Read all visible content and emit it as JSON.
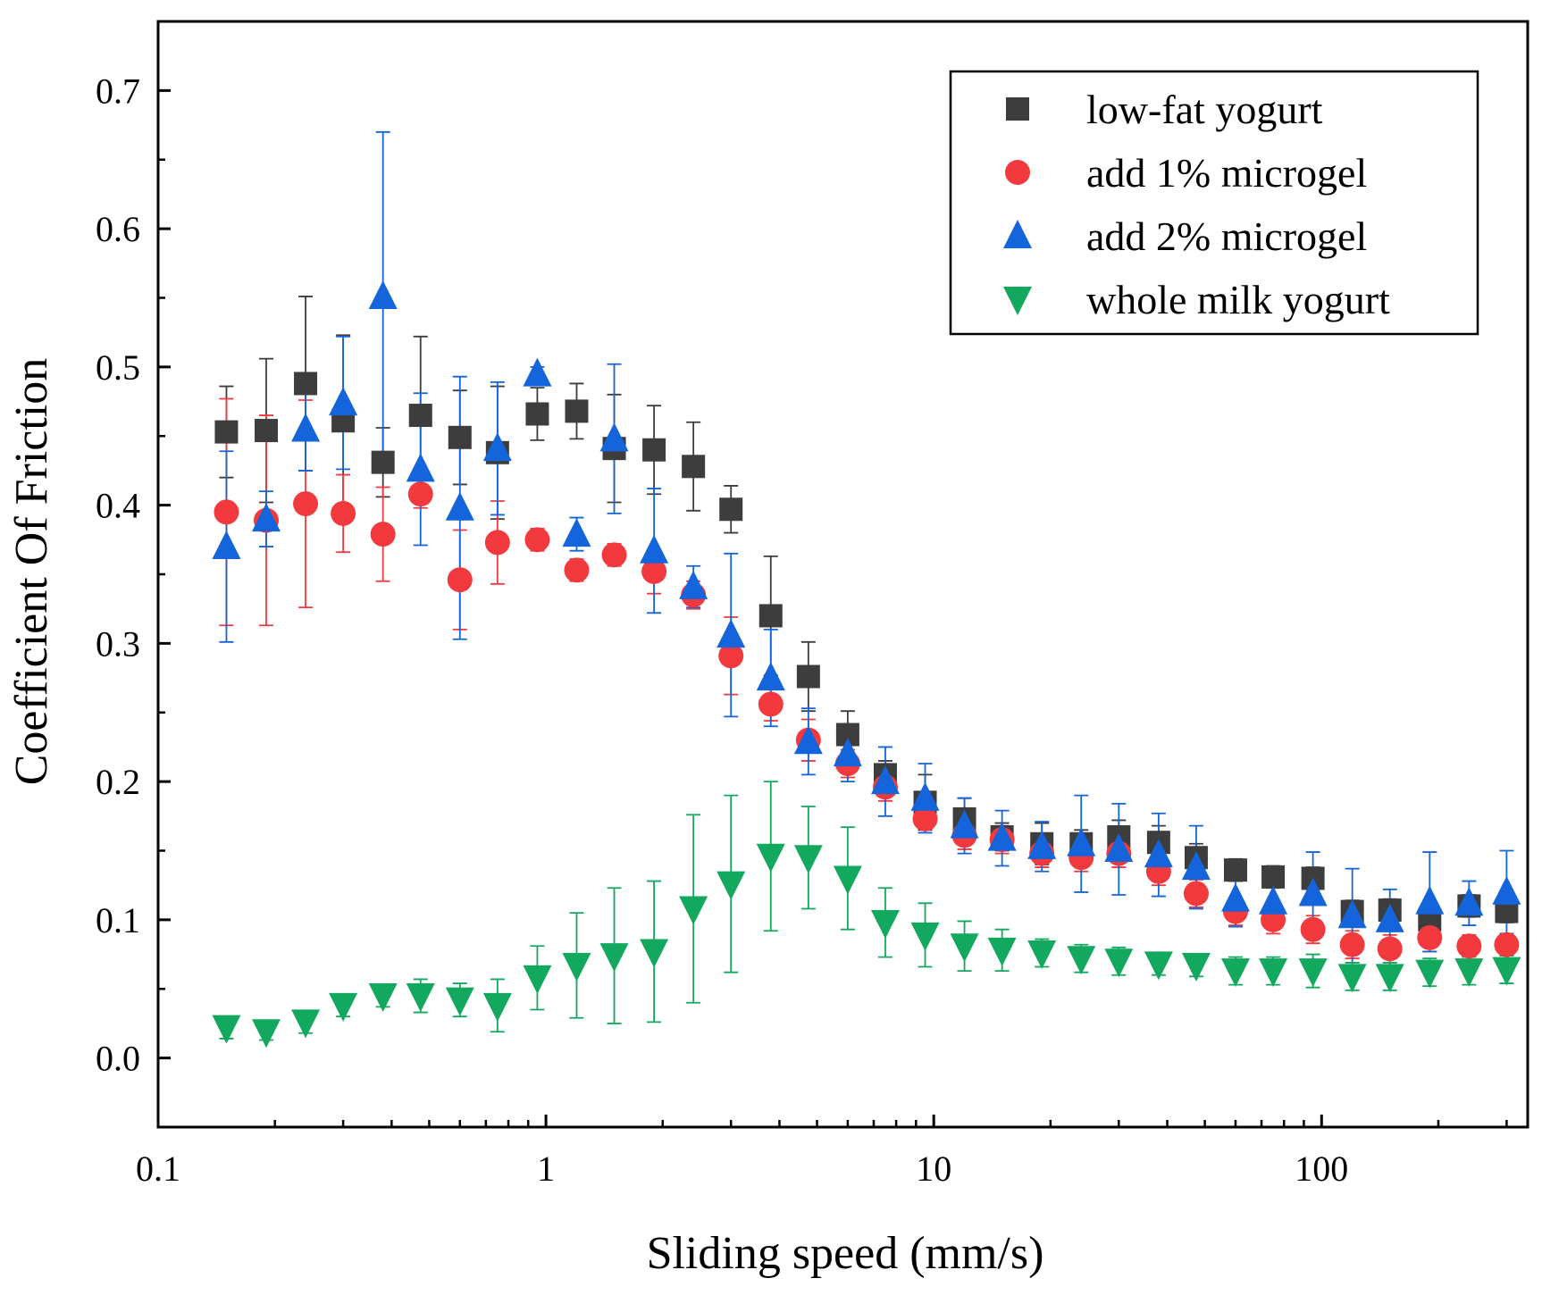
{
  "chart_data": {
    "type": "scatter",
    "xscale": "log",
    "xlabel": "Sliding speed (mm/s)",
    "ylabel": "Coefficient Of Friction",
    "xlim": [
      0.1,
      340
    ],
    "ylim": [
      -0.05,
      0.75
    ],
    "x_ticks": [
      {
        "value": 0.1,
        "label": "0.1"
      },
      {
        "value": 1,
        "label": "1"
      },
      {
        "value": 10,
        "label": "10"
      },
      {
        "value": 100,
        "label": "100"
      }
    ],
    "y_ticks": [
      {
        "value": 0.0,
        "label": "0.0"
      },
      {
        "value": 0.1,
        "label": "0.1"
      },
      {
        "value": 0.2,
        "label": "0.2"
      },
      {
        "value": 0.3,
        "label": "0.3"
      },
      {
        "value": 0.4,
        "label": "0.4"
      },
      {
        "value": 0.5,
        "label": "0.5"
      },
      {
        "value": 0.6,
        "label": "0.6"
      },
      {
        "value": 0.7,
        "label": "0.7"
      }
    ],
    "legend_position": "top-right",
    "x": [
      0.15,
      0.19,
      0.24,
      0.3,
      0.38,
      0.475,
      0.6,
      0.75,
      0.95,
      1.2,
      1.5,
      1.9,
      2.4,
      3.0,
      3.8,
      4.75,
      6.0,
      7.5,
      9.5,
      12,
      15,
      19,
      24,
      30,
      38,
      47.5,
      60,
      75,
      95,
      120,
      150,
      190,
      240,
      300
    ],
    "series": [
      {
        "name": "low-fat yogurt",
        "marker": "square",
        "color": "#3d3d3d",
        "error_color": "#3d3d3d",
        "values": [
          0.453,
          0.454,
          0.488,
          0.461,
          0.431,
          0.465,
          0.449,
          0.438,
          0.466,
          0.468,
          0.441,
          0.44,
          0.428,
          0.397,
          0.32,
          0.276,
          0.234,
          0.205,
          0.185,
          0.173,
          0.16,
          0.155,
          0.155,
          0.16,
          0.156,
          0.145,
          0.136,
          0.131,
          0.13,
          0.106,
          0.107,
          0.1,
          0.11,
          0.106
        ],
        "errors": [
          0.033,
          0.052,
          0.063,
          0.062,
          0.025,
          0.057,
          0.034,
          0.048,
          0.019,
          0.02,
          0.039,
          0.032,
          0.032,
          0.017,
          0.043,
          0.025,
          0.017,
          0.01,
          0.02,
          0.015,
          0.01,
          0.015,
          0.01,
          0.012,
          0.012,
          0.01,
          0.008,
          0.008,
          0.008,
          0.008,
          0.008,
          0.008,
          0.008,
          0.008
        ]
      },
      {
        "name": "add 1% microgel",
        "marker": "circle",
        "color": "#f2393d",
        "error_color": "#f2393d",
        "values": [
          0.395,
          0.389,
          0.401,
          0.394,
          0.379,
          0.408,
          0.346,
          0.373,
          0.375,
          0.353,
          0.364,
          0.352,
          0.335,
          0.291,
          0.256,
          0.23,
          0.213,
          0.196,
          0.173,
          0.161,
          0.158,
          0.148,
          0.145,
          0.148,
          0.135,
          0.119,
          0.106,
          0.1,
          0.093,
          0.082,
          0.079,
          0.087,
          0.081,
          0.082
        ],
        "errors": [
          0.082,
          0.076,
          0.075,
          0.028,
          0.034,
          0.01,
          0.036,
          0.03,
          0.008,
          0.008,
          0.008,
          0.016,
          0.01,
          0.028,
          0.012,
          0.015,
          0.01,
          0.01,
          0.01,
          0.01,
          0.01,
          0.01,
          0.01,
          0.01,
          0.01,
          0.01,
          0.01,
          0.01,
          0.01,
          0.01,
          0.01,
          0.01,
          0.008,
          0.008
        ]
      },
      {
        "name": "add 2% microgel",
        "marker": "triangle-up",
        "color": "#1464db",
        "error_color": "#1464db",
        "values": [
          0.37,
          0.39,
          0.455,
          0.474,
          0.551,
          0.426,
          0.398,
          0.441,
          0.495,
          0.379,
          0.448,
          0.367,
          0.341,
          0.306,
          0.275,
          0.229,
          0.22,
          0.2,
          0.188,
          0.168,
          0.159,
          0.153,
          0.155,
          0.151,
          0.147,
          0.138,
          0.115,
          0.113,
          0.119,
          0.103,
          0.1,
          0.113,
          0.112,
          0.12
        ],
        "errors": [
          0.069,
          0.02,
          0.03,
          0.048,
          0.119,
          0.055,
          0.095,
          0.048,
          0.005,
          0.012,
          0.054,
          0.045,
          0.015,
          0.059,
          0.035,
          0.024,
          0.02,
          0.025,
          0.025,
          0.02,
          0.02,
          0.018,
          0.035,
          0.033,
          0.03,
          0.03,
          0.02,
          0.02,
          0.03,
          0.034,
          0.022,
          0.036,
          0.016,
          0.03
        ]
      },
      {
        "name": "whole milk yogurt",
        "marker": "triangle-down",
        "color": "#12a85e",
        "error_color": "#12a85e",
        "values": [
          0.022,
          0.019,
          0.026,
          0.038,
          0.045,
          0.045,
          0.042,
          0.038,
          0.058,
          0.067,
          0.074,
          0.077,
          0.108,
          0.126,
          0.146,
          0.145,
          0.13,
          0.098,
          0.089,
          0.081,
          0.078,
          0.076,
          0.072,
          0.07,
          0.068,
          0.067,
          0.063,
          0.063,
          0.063,
          0.059,
          0.059,
          0.062,
          0.063,
          0.064
        ],
        "errors": [
          0.008,
          0.006,
          0.008,
          0.008,
          0.008,
          0.012,
          0.012,
          0.019,
          0.023,
          0.038,
          0.049,
          0.051,
          0.068,
          0.064,
          0.054,
          0.037,
          0.037,
          0.025,
          0.023,
          0.018,
          0.015,
          0.01,
          0.01,
          0.01,
          0.008,
          0.008,
          0.01,
          0.01,
          0.012,
          0.01,
          0.01,
          0.01,
          0.01,
          0.01
        ]
      }
    ]
  }
}
